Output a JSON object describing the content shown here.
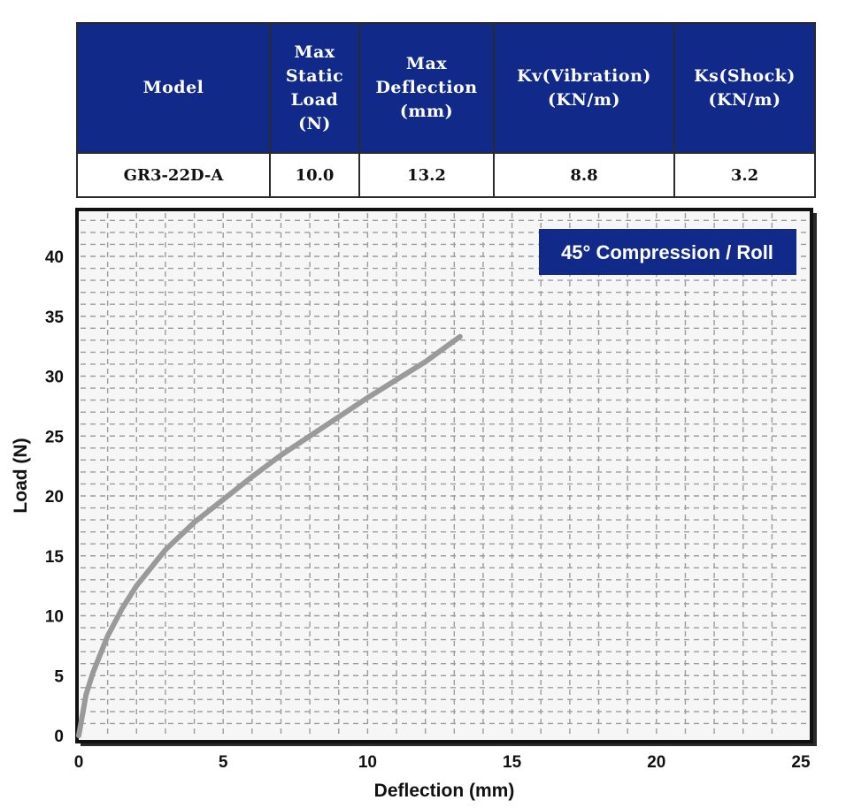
{
  "table": {
    "headers": [
      "Model",
      "Max Static Load (N)",
      "Max Deflection (mm)",
      "Kv(Vibration) (KN/m)",
      "Ks(Shock) (KN/m)"
    ],
    "header_lines": [
      [
        "Model"
      ],
      [
        "Max",
        "Static",
        "Load",
        "(N)"
      ],
      [
        "Max",
        "Deflection",
        "(mm)"
      ],
      [
        "Kv(Vibration)",
        "(KN/m)"
      ],
      [
        "Ks(Shock)",
        "(KN/m)"
      ]
    ],
    "rows": [
      [
        "GR3-22D-A",
        "10.0",
        "13.2",
        "8.8",
        "3.2"
      ]
    ],
    "colors": {
      "header_bg": "#112a8a",
      "header_text": "#ffffff"
    }
  },
  "chart_data": {
    "type": "line",
    "title": "45° Compression / Roll",
    "xlabel": "Deflection (mm)",
    "ylabel": "Load (N)",
    "xlim": [
      0,
      25
    ],
    "ylim": [
      0,
      44
    ],
    "xticks": [
      0,
      5,
      10,
      15,
      20,
      25
    ],
    "yticks": [
      0,
      5,
      10,
      15,
      20,
      25,
      30,
      35,
      40
    ],
    "grid": true,
    "legend_position": "top-right",
    "series": [
      {
        "x": [
          0,
          0.25,
          0.5,
          1,
          1.5,
          2,
          3,
          4,
          5,
          6,
          7,
          8,
          9,
          10,
          11,
          12,
          13.2
        ],
        "y": [
          0,
          3.4,
          5.3,
          8.3,
          10.6,
          12.5,
          15.5,
          17.8,
          19.7,
          21.6,
          23.4,
          25.0,
          26.6,
          28.2,
          29.7,
          31.2,
          33.3
        ],
        "color": "#9a9a9a"
      }
    ]
  }
}
